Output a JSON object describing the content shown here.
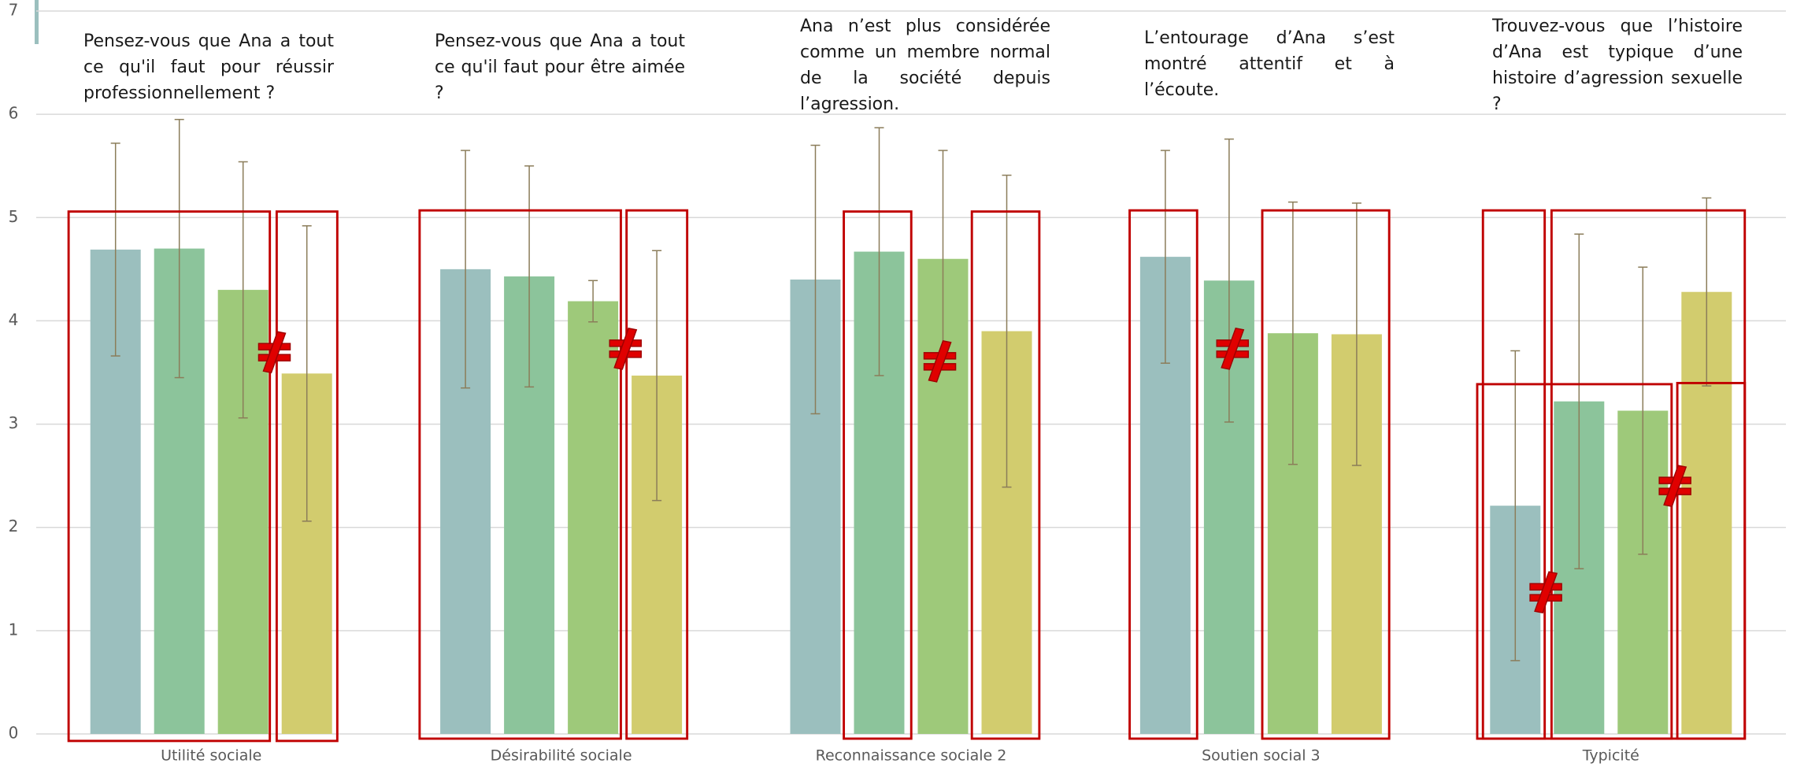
{
  "chart_data": {
    "type": "bar",
    "categories": [
      "Utilité sociale",
      "Désirabilité sociale",
      "Reconnaissance sociale 2",
      "Soutien social 3",
      "Typicité"
    ],
    "questions": [
      "Pensez-vous que Ana a tout ce qu'il faut pour réussir professionnellement ?",
      "Pensez-vous que Ana a tout ce qu'il faut pour être aimée ?",
      "Ana n’est plus considérée comme un membre normal de la société depuis l’agression.",
      "L’entourage d’Ana s’est montré attentif et à l’écoute.",
      "Trouvez-vous que l’histoire d’Ana est typique d’une histoire d’agression sexuelle ?"
    ],
    "series": [
      {
        "color": "#9bbfbe",
        "values": [
          4.69,
          4.5,
          4.4,
          4.62,
          2.21
        ],
        "errors": [
          1.03,
          1.15,
          1.3,
          1.03,
          1.5
        ]
      },
      {
        "color": "#8cc49b",
        "values": [
          4.7,
          4.43,
          4.67,
          4.39,
          3.22
        ],
        "errors": [
          1.25,
          1.07,
          1.2,
          1.37,
          1.62
        ]
      },
      {
        "color": "#9ec97a",
        "values": [
          4.3,
          4.19,
          4.6,
          3.88,
          3.13
        ],
        "errors": [
          1.24,
          0.2,
          1.05,
          1.27,
          1.39
        ]
      },
      {
        "color": "#d2cc6e",
        "values": [
          3.49,
          3.47,
          3.9,
          3.87,
          4.28
        ],
        "errors": [
          1.43,
          1.21,
          1.51,
          1.27,
          0.91
        ]
      }
    ],
    "ylim": [
      0,
      7
    ],
    "yticks": [
      0,
      1,
      2,
      3,
      4,
      5,
      6,
      7
    ],
    "grid": true
  }
}
